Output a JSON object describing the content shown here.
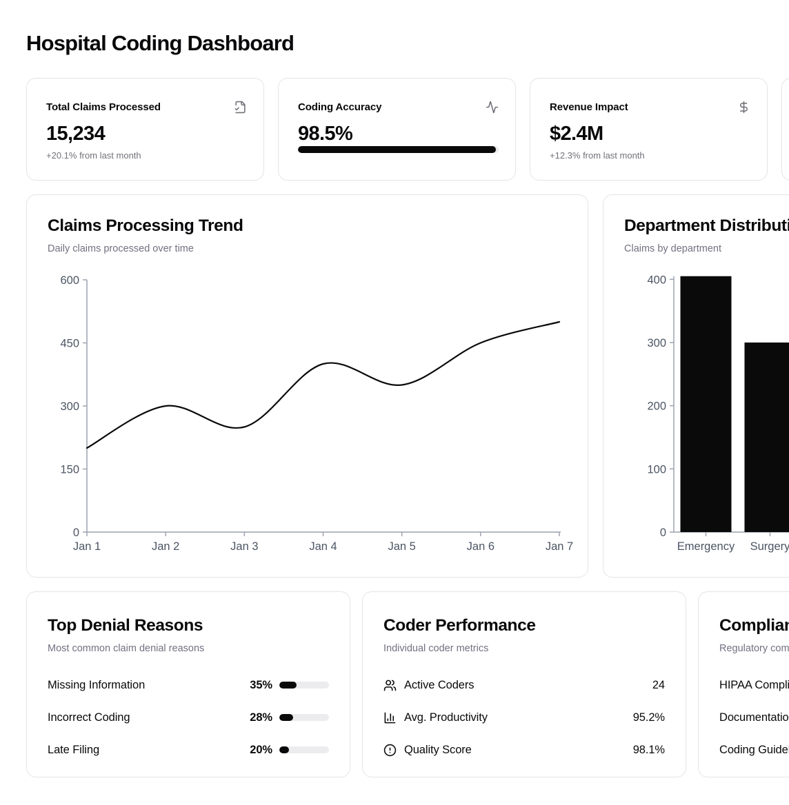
{
  "page": {
    "title": "Hospital Coding Dashboard"
  },
  "colors": {
    "foreground": "#09090b",
    "muted_text": "#717182",
    "card_border": "#e4e4e7",
    "axis_line": "#9ca3af",
    "tick_text": "#4b5563",
    "series_fill": "#0a0a0a",
    "progress_track": "#e9e9eb"
  },
  "stat_cards": [
    {
      "label": "Total Claims Processed",
      "value": "15,234",
      "sub": "+20.1% from last month",
      "icon": "file-check-icon"
    },
    {
      "label": "Coding Accuracy",
      "value": "98.5%",
      "progress": 98.5,
      "icon": "activity-icon"
    },
    {
      "label": "Revenue Impact",
      "value": "$2.4M",
      "sub": "+12.3% from last month",
      "icon": "dollar-sign-icon"
    },
    {
      "label": "",
      "value": "",
      "sub": "",
      "icon": ""
    }
  ],
  "chart_cards": [
    {
      "title": "Claims Processing Trend",
      "subtitle": "Daily claims processed over time"
    },
    {
      "title": "Department Distribution",
      "subtitle": "Claims by department"
    }
  ],
  "chart_data": [
    {
      "type": "line",
      "title": "Claims Processing Trend",
      "x": [
        "Jan 1",
        "Jan 2",
        "Jan 3",
        "Jan 4",
        "Jan 5",
        "Jan 6",
        "Jan 7"
      ],
      "values": [
        200,
        300,
        250,
        400,
        350,
        450,
        500
      ],
      "xlabel": "",
      "ylabel": "",
      "ylim": [
        0,
        600
      ],
      "yticks": [
        0,
        150,
        300,
        450,
        600
      ],
      "grid": false,
      "legend": "none",
      "line_color": "#0a0a0a",
      "curve": "smooth"
    },
    {
      "type": "bar",
      "title": "Department Distribution",
      "categories": [
        "Emergency",
        "Surgery"
      ],
      "values": [
        405,
        300
      ],
      "xlabel": "",
      "ylabel": "",
      "ylim": [
        0,
        405
      ],
      "yticks": [
        0,
        100,
        200,
        300,
        400
      ],
      "grid": false,
      "legend": "none",
      "bar_color": "#0a0a0a",
      "note": "chart is clipped by the right edge of the viewport; only two bars visible"
    }
  ],
  "denial": {
    "title": "Top Denial Reasons",
    "subtitle": "Most common claim denial reasons",
    "rows": [
      {
        "label": "Missing Information",
        "pct": "35%",
        "value": 35
      },
      {
        "label": "Incorrect Coding",
        "pct": "28%",
        "value": 28
      },
      {
        "label": "Late Filing",
        "pct": "20%",
        "value": 20
      }
    ]
  },
  "coder": {
    "title": "Coder Performance",
    "subtitle": "Individual coder metrics",
    "rows": [
      {
        "icon": "users-icon",
        "label": "Active Coders",
        "value": "24"
      },
      {
        "icon": "bar-chart-icon",
        "label": "Avg. Productivity",
        "value": "95.2%"
      },
      {
        "icon": "alert-circle-icon",
        "label": "Quality Score",
        "value": "98.1%"
      }
    ]
  },
  "compliance": {
    "title": "Compliance",
    "subtitle": "Regulatory compliance",
    "rows": [
      {
        "label": "HIPAA Compliance"
      },
      {
        "label": "Documentation"
      },
      {
        "label": "Coding Guidelines"
      }
    ]
  }
}
